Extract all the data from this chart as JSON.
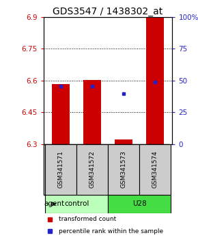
{
  "title": "GDS3547 / 1438302_at",
  "samples": [
    "GSM341571",
    "GSM341572",
    "GSM341573",
    "GSM341574"
  ],
  "bar_bottoms": [
    6.3,
    6.3,
    6.3,
    6.3
  ],
  "bar_tops": [
    6.582,
    6.602,
    6.323,
    6.9
  ],
  "percentile_values": [
    6.574,
    6.574,
    6.537,
    6.592
  ],
  "ylim": [
    6.3,
    6.9
  ],
  "yticks_left": [
    6.3,
    6.45,
    6.6,
    6.75,
    6.9
  ],
  "yticks_right_vals": [
    6.3,
    6.45,
    6.6,
    6.75,
    6.9
  ],
  "yticks_right_labels": [
    "0",
    "25",
    "50",
    "75",
    "100%"
  ],
  "bar_color": "#cc0000",
  "blue_color": "#2222cc",
  "groups": [
    {
      "label": "control",
      "samples": [
        0,
        1
      ],
      "color": "#bbffbb"
    },
    {
      "label": "U28",
      "samples": [
        2,
        3
      ],
      "color": "#44dd44"
    }
  ],
  "group_row_label": "agent",
  "legend_items": [
    {
      "color": "#cc0000",
      "label": "transformed count"
    },
    {
      "color": "#2222cc",
      "label": "percentile rank within the sample"
    }
  ],
  "bar_width": 0.55,
  "left_tick_color": "#cc0000",
  "right_tick_color": "#2222cc",
  "title_fontsize": 10,
  "tick_fontsize": 7.5,
  "sample_fontsize": 6.5,
  "label_fontsize": 7.5,
  "legend_fontsize": 6.5
}
